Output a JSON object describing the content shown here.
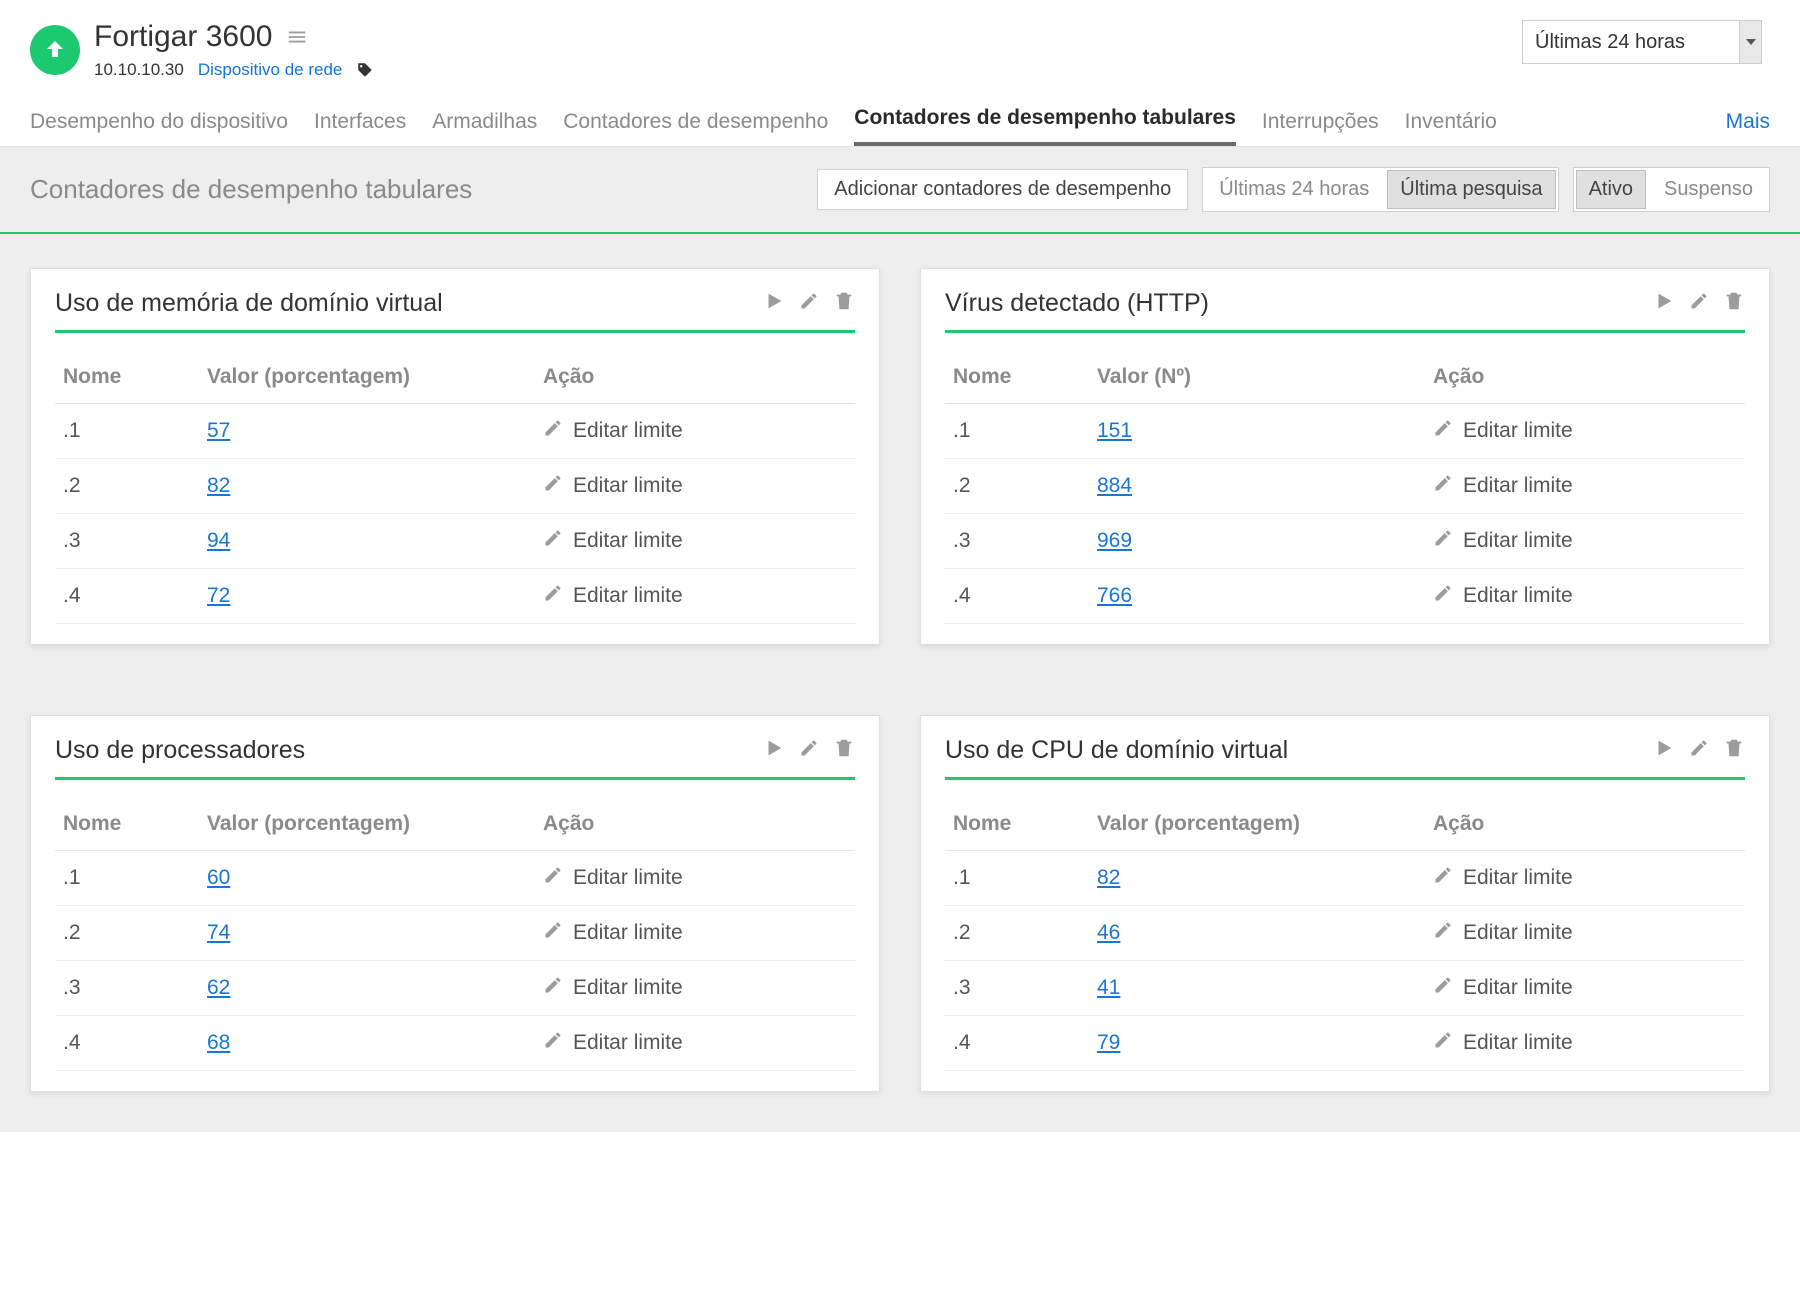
{
  "colors": {
    "accent_green": "#1cc96f",
    "link_blue": "#1976d2",
    "muted_gray": "#8a8a8a",
    "bg_gray": "#eeeeee",
    "text_dark": "#333333"
  },
  "header": {
    "device_name": "Fortigar 3600",
    "ip": "10.10.10.30",
    "type_link": "Dispositivo de rede",
    "timeframe": "Últimas 24 horas"
  },
  "tabs": {
    "items": [
      "Desempenho do dispositivo",
      "Interfaces",
      "Armadilhas",
      "Contadores de desempenho",
      "Contadores de desempenho tabulares",
      "Interrupções",
      "Inventário"
    ],
    "active_index": 4,
    "more_label": "Mais"
  },
  "toolbar": {
    "page_subtitle": "Contadores de desempenho tabulares",
    "add_button": "Adicionar contadores de desempenho",
    "seg1": {
      "a": "Últimas 24 horas",
      "b": "Última pesquisa",
      "active": "b"
    },
    "seg2": {
      "a": "Ativo",
      "b": "Suspenso",
      "active": "a"
    }
  },
  "common": {
    "col_name": "Nome",
    "col_action": "Ação",
    "edit_limit": "Editar limite"
  },
  "cards": [
    {
      "title": "Uso de memória de domínio virtual",
      "value_header": "Valor (porcentagem)",
      "rows": [
        {
          "name": ".1",
          "value": "57"
        },
        {
          "name": ".2",
          "value": "82"
        },
        {
          "name": ".3",
          "value": "94"
        },
        {
          "name": ".4",
          "value": "72"
        }
      ]
    },
    {
      "title": "Vírus detectado (HTTP)",
      "value_header": "Valor (Nº)",
      "rows": [
        {
          "name": ".1",
          "value": "151"
        },
        {
          "name": ".2",
          "value": "884"
        },
        {
          "name": ".3",
          "value": "969"
        },
        {
          "name": ".4",
          "value": "766"
        }
      ]
    },
    {
      "title": "Uso de processadores",
      "value_header": "Valor (porcentagem)",
      "rows": [
        {
          "name": ".1",
          "value": "60"
        },
        {
          "name": ".2",
          "value": "74"
        },
        {
          "name": ".3",
          "value": "62"
        },
        {
          "name": ".4",
          "value": "68"
        }
      ]
    },
    {
      "title": "Uso de CPU de domínio virtual",
      "value_header": "Valor (porcentagem)",
      "rows": [
        {
          "name": ".1",
          "value": "82"
        },
        {
          "name": ".2",
          "value": "46"
        },
        {
          "name": ".3",
          "value": "41"
        },
        {
          "name": ".4",
          "value": "79"
        }
      ]
    }
  ]
}
